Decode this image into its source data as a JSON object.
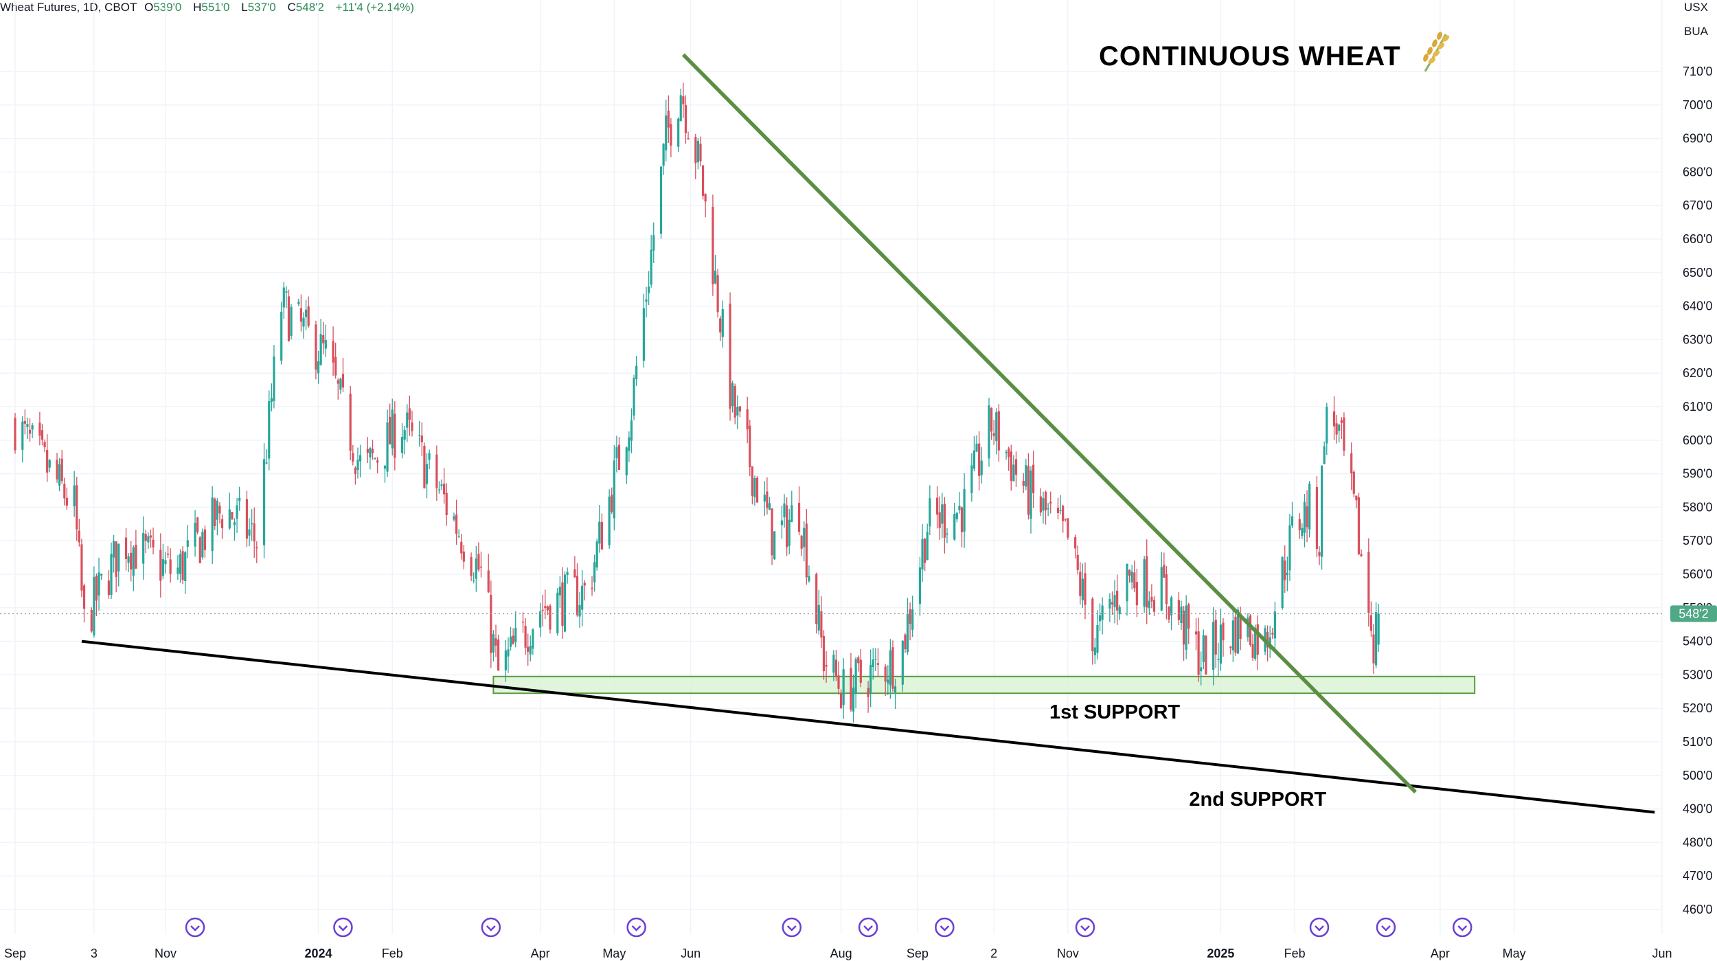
{
  "header": {
    "symbol": "Wheat Futures, 1D, CBOT",
    "open_label": "O",
    "open": "539'0",
    "high_label": "H",
    "high": "551'0",
    "low_label": "L",
    "low": "537'0",
    "close_label": "C",
    "close": "548'2",
    "change": "+11'4 (+2.14%)",
    "currency": "USX",
    "unit": "BUA"
  },
  "colors": {
    "up": "#26a69a",
    "down": "#d94f5c",
    "trendline": "#5a8f43",
    "support_line": "#000000",
    "zone_fill": "#d9f2d4",
    "zone_stroke": "#5a9a3e",
    "price_tag": "#4fa886",
    "event_icon": "#6b3fd6"
  },
  "chart_data": {
    "type": "candlestick",
    "title": "CONTINUOUS WHEAT",
    "title_icon": "wheat-icon",
    "y_axis": {
      "min": 455,
      "max": 730,
      "ticks": [
        460,
        470,
        480,
        490,
        500,
        510,
        520,
        530,
        540,
        550,
        560,
        570,
        580,
        590,
        600,
        610,
        620,
        630,
        640,
        650,
        660,
        670,
        680,
        690,
        700,
        710
      ],
      "tick_labels": [
        "460'0",
        "470'0",
        "480'0",
        "490'0",
        "500'0",
        "510'0",
        "520'0",
        "530'0",
        "540'0",
        "550'0",
        "560'0",
        "570'0",
        "580'0",
        "590'0",
        "600'0",
        "610'0",
        "620'0",
        "630'0",
        "640'0",
        "650'0",
        "660'0",
        "670'0",
        "680'0",
        "690'0",
        "700'0",
        "710'0"
      ]
    },
    "x_axis": {
      "start": "2023-09-01",
      "end": "2025-06-30",
      "ticks": [
        {
          "date": "2023-09-01",
          "label": "Sep",
          "bold": false
        },
        {
          "date": "2023-10-03",
          "label": "3",
          "bold": false
        },
        {
          "date": "2023-11-01",
          "label": "Nov",
          "bold": false
        },
        {
          "date": "2024-01-02",
          "label": "2024",
          "bold": true
        },
        {
          "date": "2024-02-01",
          "label": "Feb",
          "bold": false
        },
        {
          "date": "2024-04-01",
          "label": "Apr",
          "bold": false
        },
        {
          "date": "2024-05-01",
          "label": "May",
          "bold": false
        },
        {
          "date": "2024-06-01",
          "label": "Jun",
          "bold": false
        },
        {
          "date": "2024-08-01",
          "label": "Aug",
          "bold": false
        },
        {
          "date": "2024-09-01",
          "label": "Sep",
          "bold": false
        },
        {
          "date": "2024-10-02",
          "label": "2",
          "bold": false
        },
        {
          "date": "2024-11-01",
          "label": "Nov",
          "bold": false
        },
        {
          "date": "2025-01-02",
          "label": "2025",
          "bold": true
        },
        {
          "date": "2025-02-01",
          "label": "Feb",
          "bold": false
        },
        {
          "date": "2025-04-01",
          "label": "Apr",
          "bold": false
        },
        {
          "date": "2025-05-01",
          "label": "May",
          "bold": false
        },
        {
          "date": "2025-06-30",
          "label": "Jun",
          "bold": false
        }
      ]
    },
    "grid": true,
    "last_price": {
      "value": 548.25,
      "label": "548'2"
    },
    "path_anchors": [
      {
        "date": "2023-09-01",
        "price": 605
      },
      {
        "date": "2023-09-25",
        "price": 580
      },
      {
        "date": "2023-09-29",
        "price": 545
      },
      {
        "date": "2023-10-15",
        "price": 570
      },
      {
        "date": "2023-11-05",
        "price": 560
      },
      {
        "date": "2023-11-25",
        "price": 580
      },
      {
        "date": "2023-12-08",
        "price": 570
      },
      {
        "date": "2023-12-18",
        "price": 640
      },
      {
        "date": "2024-01-05",
        "price": 625
      },
      {
        "date": "2024-01-20",
        "price": 590
      },
      {
        "date": "2024-02-05",
        "price": 605
      },
      {
        "date": "2024-02-20",
        "price": 585
      },
      {
        "date": "2024-03-08",
        "price": 560
      },
      {
        "date": "2024-03-15",
        "price": 530
      },
      {
        "date": "2024-04-01",
        "price": 550
      },
      {
        "date": "2024-04-20",
        "price": 555
      },
      {
        "date": "2024-05-08",
        "price": 610
      },
      {
        "date": "2024-05-22",
        "price": 690
      },
      {
        "date": "2024-05-28",
        "price": 705
      },
      {
        "date": "2024-06-05",
        "price": 680
      },
      {
        "date": "2024-06-18",
        "price": 610
      },
      {
        "date": "2024-07-05",
        "price": 570
      },
      {
        "date": "2024-07-15",
        "price": 580
      },
      {
        "date": "2024-07-25",
        "price": 535
      },
      {
        "date": "2024-08-02",
        "price": 525
      },
      {
        "date": "2024-08-12",
        "price": 530
      },
      {
        "date": "2024-08-25",
        "price": 535
      },
      {
        "date": "2024-09-05",
        "price": 575
      },
      {
        "date": "2024-09-20",
        "price": 580
      },
      {
        "date": "2024-10-01",
        "price": 605
      },
      {
        "date": "2024-10-15",
        "price": 585
      },
      {
        "date": "2024-11-01",
        "price": 570
      },
      {
        "date": "2024-11-12",
        "price": 540
      },
      {
        "date": "2024-11-25",
        "price": 560
      },
      {
        "date": "2024-12-10",
        "price": 555
      },
      {
        "date": "2024-12-25",
        "price": 535
      },
      {
        "date": "2025-01-10",
        "price": 545
      },
      {
        "date": "2025-01-20",
        "price": 540
      },
      {
        "date": "2025-02-01",
        "price": 575
      },
      {
        "date": "2025-02-08",
        "price": 580
      },
      {
        "date": "2025-02-11",
        "price": 570
      },
      {
        "date": "2025-02-13",
        "price": 605
      },
      {
        "date": "2025-02-18",
        "price": 605
      },
      {
        "date": "2025-02-26",
        "price": 575
      },
      {
        "date": "2025-03-05",
        "price": 540
      },
      {
        "date": "2025-03-07",
        "price": 548.25
      }
    ],
    "annotations": {
      "downtrend": {
        "from": {
          "date": "2024-05-29",
          "price": 715
        },
        "to": {
          "date": "2025-03-22",
          "price": 495
        }
      },
      "long_support": {
        "from": {
          "date": "2023-09-28",
          "price": 540
        },
        "to": {
          "date": "2025-06-27",
          "price": 489
        }
      },
      "zone": {
        "from_date": "2024-03-13",
        "to_date": "2025-04-15",
        "low": 524.5,
        "high": 529.5
      },
      "first_support_label": {
        "text": "1st SUPPORT",
        "date": "2024-11-20",
        "price": 519
      },
      "second_support_label": {
        "text": "2nd SUPPORT",
        "date": "2025-01-17",
        "price": 493
      }
    },
    "event_dates": [
      "2023-11-13",
      "2024-01-12",
      "2024-03-12",
      "2024-05-10",
      "2024-07-12",
      "2024-08-12",
      "2024-09-12",
      "2024-11-08",
      "2025-02-11",
      "2025-03-10",
      "2025-04-10"
    ]
  }
}
